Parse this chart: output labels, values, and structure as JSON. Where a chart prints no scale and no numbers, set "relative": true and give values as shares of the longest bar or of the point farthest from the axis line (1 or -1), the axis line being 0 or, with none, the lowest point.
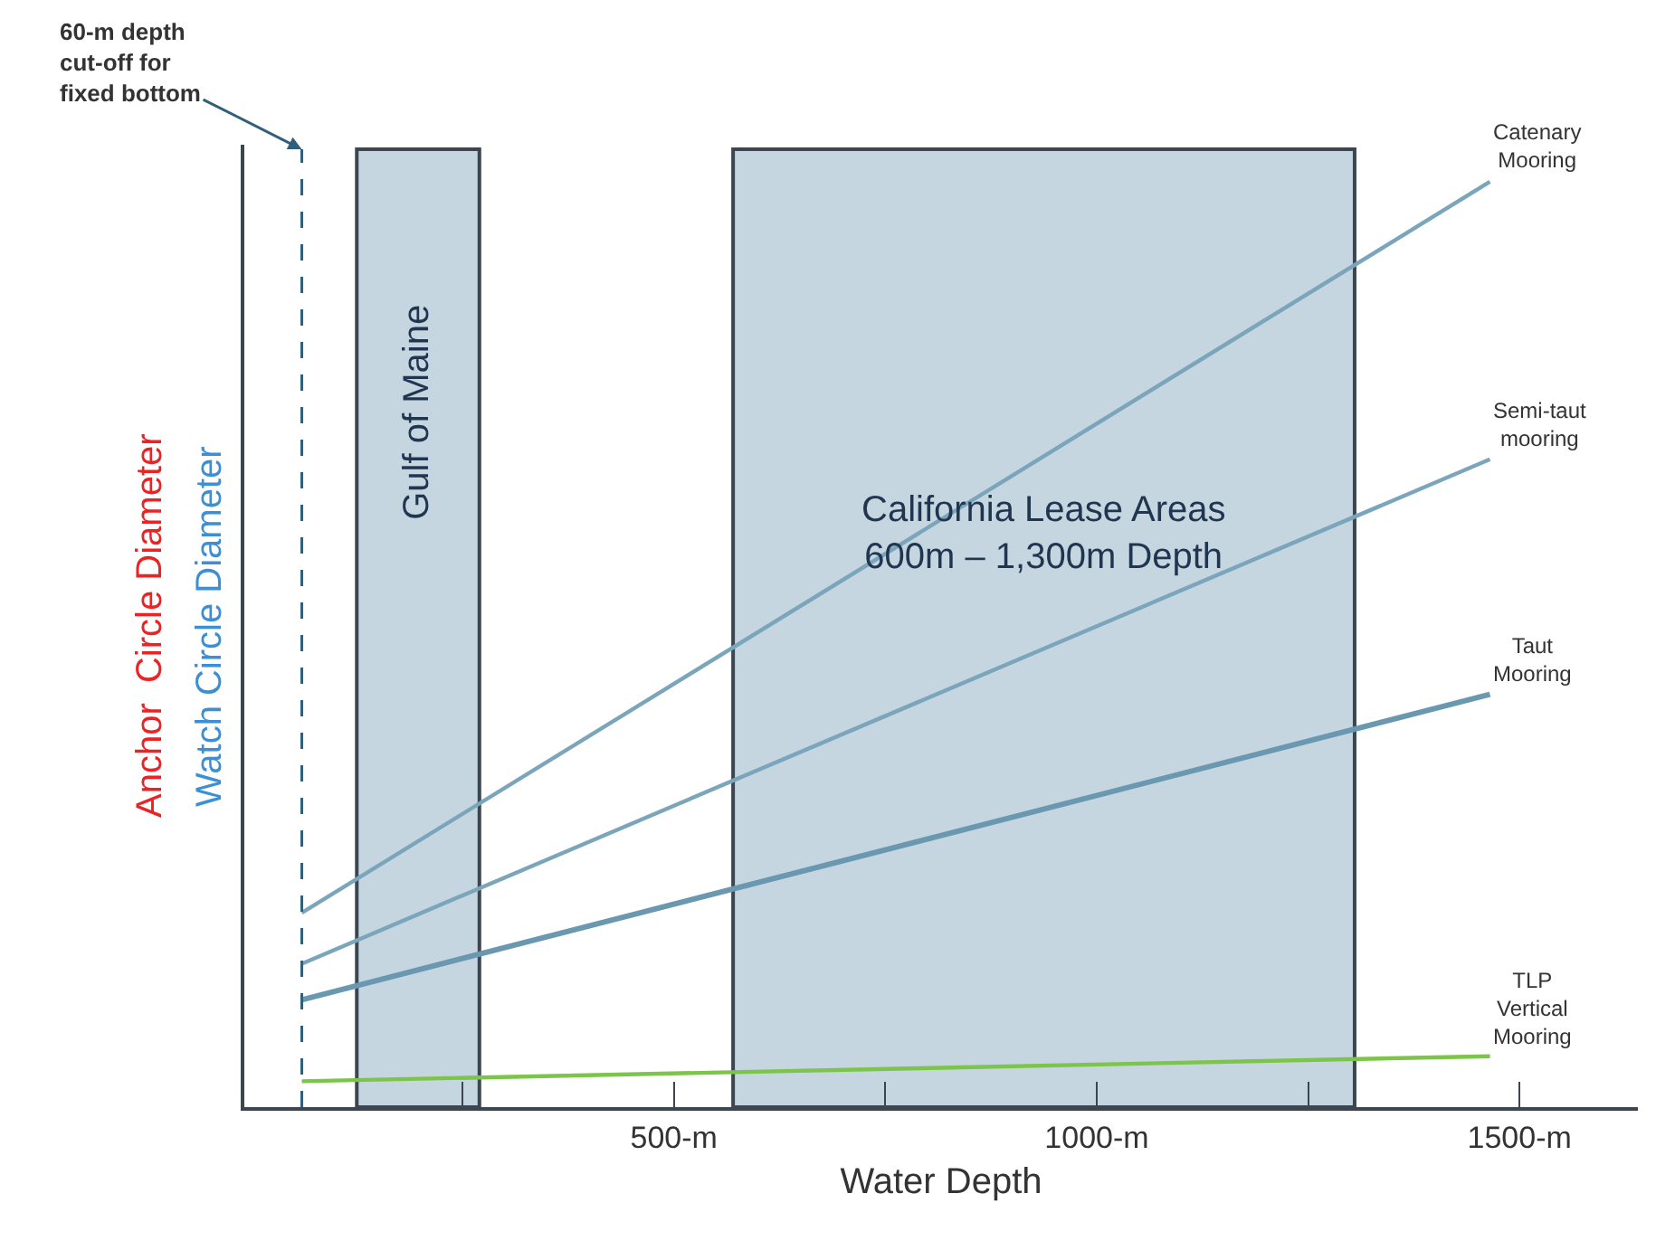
{
  "chart_data": {
    "type": "line",
    "relative": true,
    "xlabel": "Water Depth",
    "ylabel": "Anchor  Circle Diameter",
    "annotations": [
      "Watch Circle Diameter"
    ],
    "xlim": [
      -8,
      1640
    ],
    "xticks": [
      {
        "value": 250,
        "label": null
      },
      {
        "value": 500,
        "label": "500-m"
      },
      {
        "value": 750,
        "label": null
      },
      {
        "value": 1000,
        "label": "1000-m"
      },
      {
        "value": 1250,
        "label": null
      },
      {
        "value": 1500,
        "label": "1500-m"
      }
    ],
    "tick_labels": "x",
    "grid": false,
    "legend": false,
    "marker": "none",
    "line_style": "solid",
    "x": [
      60,
      1465
    ],
    "series": [
      {
        "name": "Catenary Mooring",
        "color": "#7aa5bb",
        "values": [
          0.21,
          1.0
        ]
      },
      {
        "name": "Semi-taut mooring",
        "color": "#7aa5bb",
        "values": [
          0.155,
          0.7
        ]
      },
      {
        "name": "Taut Mooring",
        "color": "#6a98b0",
        "values": [
          0.116,
          0.446
        ]
      },
      {
        "name": "TLP Vertical Mooring",
        "color": "#7cc44a",
        "values": [
          0.028,
          0.055
        ]
      }
    ],
    "bands": [
      {
        "axis": "x",
        "from": 125,
        "to": 270,
        "label": "Gulf of Maine",
        "color": "#c5d6e0"
      },
      {
        "axis": "x",
        "from": 570,
        "to": 1305,
        "label": "California Lease Areas\n600m – 1,300m Depth",
        "color": "#c5d6e0"
      }
    ],
    "ref_lines": [
      {
        "axis": "x",
        "value": 60,
        "label": "60-m depth\ncut-off for\nfixed bottom",
        "color": "#2f5f7a",
        "line_style": "dashed"
      }
    ]
  }
}
